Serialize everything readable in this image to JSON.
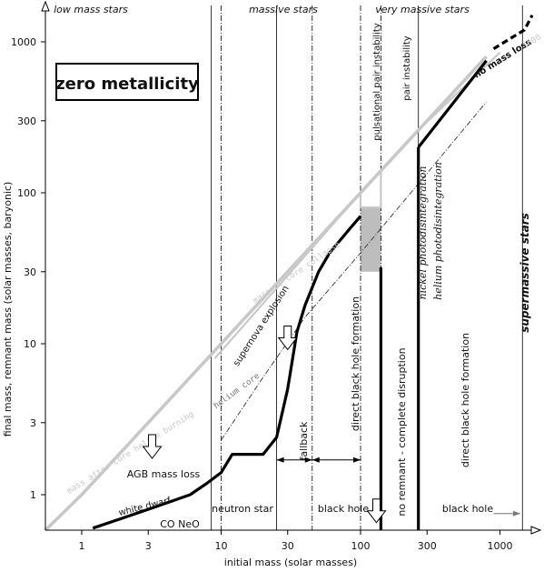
{
  "chart_data": {
    "type": "line",
    "title": "",
    "xlabel": "initial mass (solar masses)",
    "ylabel": "final mass, remnant mass (solar masses, baryonic)",
    "xscale": "log",
    "yscale": "log",
    "xlim": [
      0.5,
      2500
    ],
    "ylim": [
      0.5,
      2500
    ],
    "grid": false,
    "x_ticks": [
      {
        "value": 1,
        "label": "1"
      },
      {
        "value": 3,
        "label": "3"
      },
      {
        "value": 10,
        "label": "10"
      },
      {
        "value": 30,
        "label": "30"
      },
      {
        "value": 100,
        "label": "100"
      },
      {
        "value": 300,
        "label": "300"
      },
      {
        "value": 1000,
        "label": "1000"
      }
    ],
    "y_ticks": [
      {
        "value": 1,
        "label": "1"
      },
      {
        "value": 3,
        "label": "3"
      },
      {
        "value": 10,
        "label": "10"
      },
      {
        "value": 30,
        "label": "30"
      },
      {
        "value": 100,
        "label": "100"
      },
      {
        "value": 300,
        "label": "300"
      },
      {
        "value": 1000,
        "label": "1000"
      }
    ],
    "boundaries": [
      {
        "x": 8.5,
        "style": "solid"
      },
      {
        "x": 260,
        "style": "solid"
      },
      {
        "x": 1450,
        "style": "solid"
      },
      {
        "x": 10,
        "style": "dashdot"
      },
      {
        "x": 25,
        "style": "solid"
      },
      {
        "x": 45,
        "style": "dashdot"
      },
      {
        "x": 100,
        "style": "dashdot"
      },
      {
        "x": 140,
        "style": "dashdot"
      }
    ],
    "series": [
      {
        "name": "mass after core helium burning",
        "color": "#c8c8c8",
        "style": "thick",
        "points": [
          [
            0.5,
            0.5
          ],
          [
            1,
            1
          ],
          [
            3,
            3
          ],
          [
            10,
            10
          ],
          [
            30,
            30
          ],
          [
            100,
            100
          ],
          [
            115,
            115
          ],
          [
            250,
            250
          ],
          [
            800,
            800
          ]
        ]
      },
      {
        "name": "mass at core collapse",
        "color": "#c8c8c8",
        "style": "thin",
        "points": [
          [
            9,
            8
          ],
          [
            100,
            100
          ],
          [
            100,
            80
          ],
          [
            140,
            80
          ],
          [
            140,
            140
          ],
          [
            260,
            260
          ],
          [
            1000,
            850
          ]
        ]
      },
      {
        "name": "helium core",
        "color": "#333333",
        "style": "dashdot",
        "points": [
          [
            10,
            2.3
          ],
          [
            20,
            6
          ],
          [
            40,
            15
          ],
          [
            100,
            40
          ],
          [
            250,
            110
          ],
          [
            800,
            400
          ]
        ]
      },
      {
        "name": "remnant mass",
        "color": "#000000",
        "style": "thick",
        "segments": [
          [
            [
              1.2,
              0.6
            ],
            [
              3,
              0.8
            ],
            [
              6,
              1.0
            ],
            [
              8,
              1.2
            ],
            [
              10,
              1.4
            ],
            [
              12,
              1.85
            ],
            [
              20,
              1.85
            ],
            [
              25,
              2.4
            ],
            [
              30,
              5
            ],
            [
              35,
              12
            ],
            [
              40,
              18
            ],
            [
              50,
              30
            ],
            [
              60,
              40
            ],
            [
              80,
              55
            ],
            [
              100,
              70
            ]
          ],
          [
            [
              140,
              32
            ],
            [
              140,
              0.5
            ]
          ],
          [
            [
              260,
              200
            ],
            [
              800,
              750
            ]
          ],
          [
            [
              260,
              200
            ],
            [
              260,
              0.5
            ]
          ]
        ]
      },
      {
        "name": "no mass loss extension",
        "color": "#000000",
        "style": "dashed",
        "points": [
          [
            900,
            900
          ],
          [
            1500,
            1200
          ],
          [
            2300,
            1500
          ]
        ]
      }
    ],
    "shaded_regions": [
      {
        "x": [
          100,
          140
        ],
        "y": [
          30,
          80
        ],
        "color": "#bdbdbd"
      }
    ],
    "arrows": [
      {
        "x": [
          25,
          45
        ],
        "y": 1.7,
        "style": "double"
      },
      {
        "x": [
          45,
          100
        ],
        "y": 1.7,
        "style": "double"
      },
      {
        "x": [
          900,
          1400
        ],
        "y": 0.75,
        "style": "right"
      }
    ],
    "open_arrows": [
      {
        "x": 3.2,
        "y": 2.0
      },
      {
        "x": 30,
        "y": 10.5
      },
      {
        "x": 130,
        "y": 0.75
      }
    ],
    "top_labels": [
      "low mass stars",
      "massive stars",
      "very massive stars"
    ],
    "box_label": "zero metallicity",
    "annotations": {
      "white_dwarf": "white dwarf",
      "co_neo": "CO  NeO",
      "agb": "AGB mass loss",
      "neutron": "neutron star",
      "black_hole": "black hole",
      "black_hole_2": "black hole",
      "fallback": "fallback",
      "dbh1": "direct black hole formation",
      "dbh2": "direct black hole formation",
      "no_remnant": "no remnant  -  complete disruption",
      "supernova": "supernova explosion",
      "helium_core": "helium core",
      "mass_cc": "mass at core collapse",
      "mass_he": "mass after core helium burning",
      "pulsational": "pulsational pair instability",
      "pair": "pair instability",
      "nickel": "nickel photodisintegration",
      "helium_photo": "helium photodisintegration",
      "supermassive": "supermassive stars",
      "no_mass_loss": "no mass loss",
      "faded_1000": "1000"
    }
  }
}
